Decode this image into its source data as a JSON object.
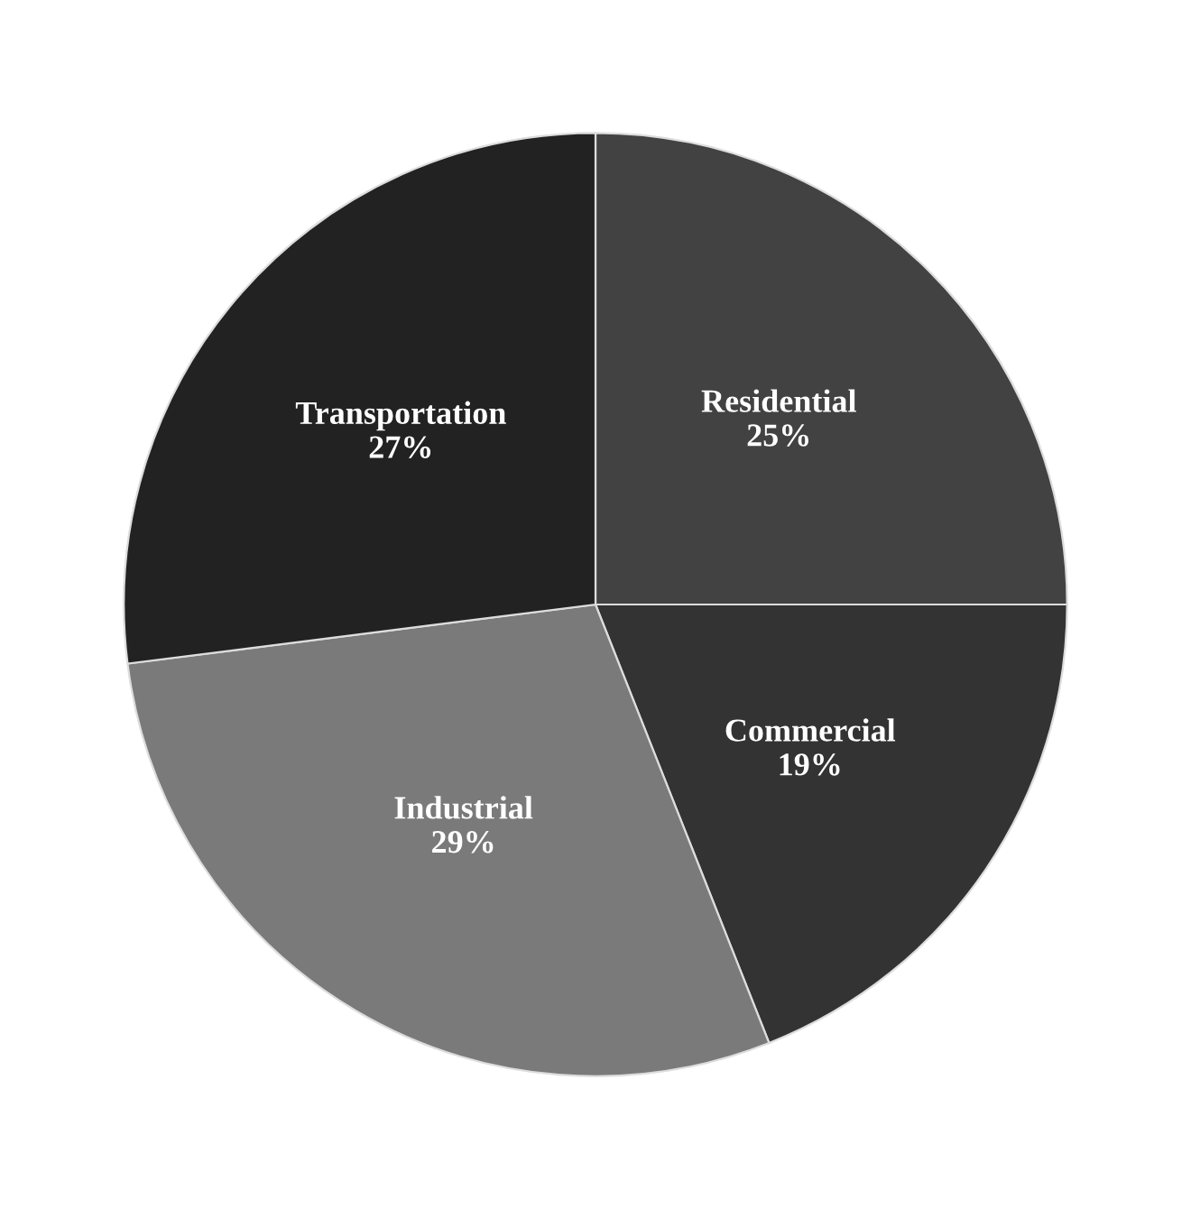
{
  "chart_data": {
    "type": "pie",
    "categories": [
      "Residential",
      "Commercial",
      "Industrial",
      "Transportation"
    ],
    "values": [
      25,
      19,
      29,
      27
    ],
    "colors": [
      "#424242",
      "#333333",
      "#7a7a7a",
      "#222222"
    ],
    "value_labels": [
      "25%",
      "19%",
      "29%",
      "27%"
    ]
  }
}
